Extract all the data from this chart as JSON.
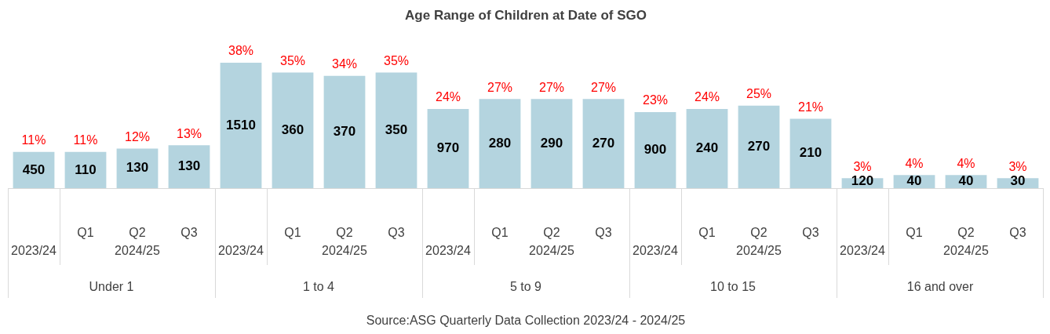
{
  "chart_data": {
    "type": "bar",
    "title": "Age Range of Children at Date of SGO",
    "categories": [
      null,
      "Q1",
      "Q2",
      "Q3",
      null,
      "Q1",
      "Q2",
      "Q3",
      null,
      "Q1",
      "Q2",
      "Q3",
      null,
      "Q1",
      "Q2",
      "Q3",
      null,
      "Q1",
      "Q2",
      "Q3"
    ],
    "values": [
      11,
      11,
      12,
      13,
      38,
      35,
      34,
      35,
      24,
      27,
      27,
      27,
      23,
      24,
      25,
      21,
      3,
      4,
      4,
      3
    ],
    "value_labels": [
      "11%",
      "11%",
      "12%",
      "13%",
      "38%",
      "35%",
      "34%",
      "35%",
      "24%",
      "27%",
      "27%",
      "27%",
      "23%",
      "24%",
      "25%",
      "21%",
      "3%",
      "4%",
      "4%",
      "3%"
    ],
    "color": "#b4d4df",
    "annotations": [
      "450",
      "110",
      "130",
      "130",
      "1510",
      "360",
      "370",
      "350",
      "970",
      "280",
      "290",
      "270",
      "900",
      "240",
      "270",
      "210",
      "120",
      "40",
      "40",
      "30",
      "2023/24",
      "2024/25",
      "2023/24",
      "2024/25",
      "2023/24",
      "2024/25",
      "2023/24",
      "2024/25",
      "2023/24",
      "2024/25",
      "Under 1",
      "1 to 4",
      "5 to 9",
      "10 to 15",
      "16 and over",
      "Source:ASG Quarterly Data Collection 2023/24 - 2024/25"
    ]
  }
}
